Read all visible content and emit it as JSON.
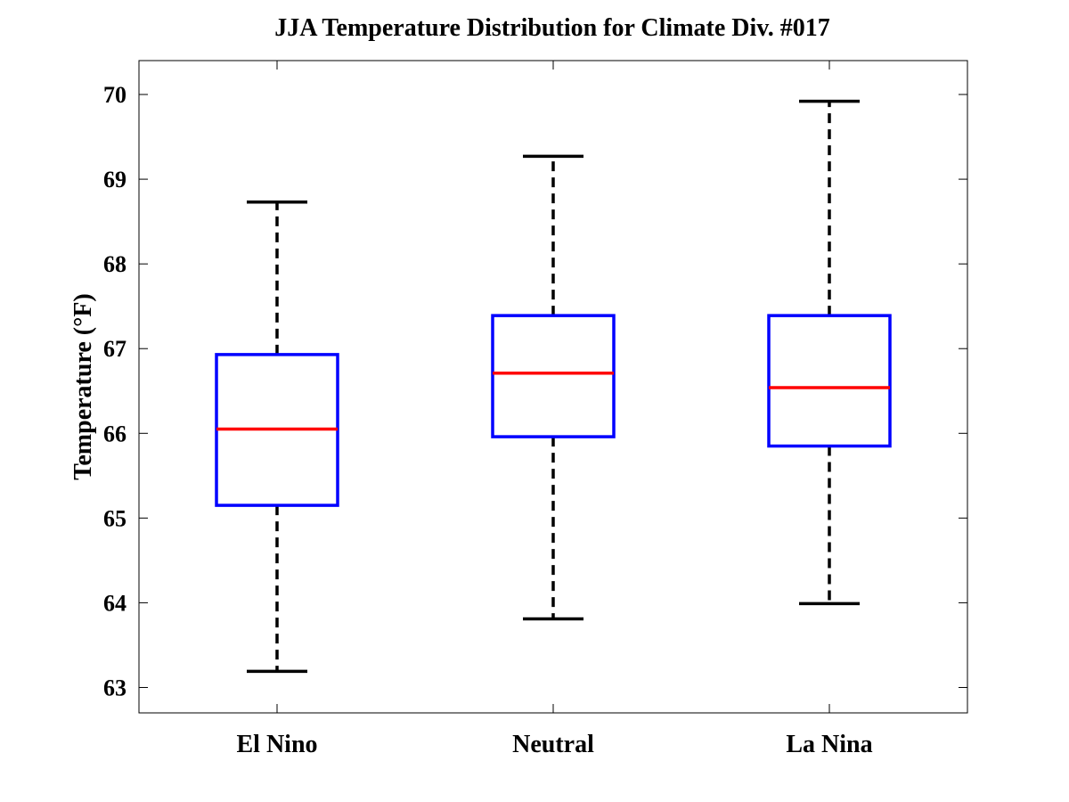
{
  "chart_data": {
    "type": "box",
    "title": "JJA Temperature Distribution for Climate Div. #017",
    "xlabel": "",
    "ylabel": "Temperature (°F)",
    "ylim": [
      62.7,
      70.4
    ],
    "yticks": [
      63,
      64,
      65,
      66,
      67,
      68,
      69,
      70
    ],
    "categories": [
      "El Nino",
      "Neutral",
      "La Nina"
    ],
    "boxes": [
      {
        "name": "El Nino",
        "min": 63.19,
        "q1": 65.15,
        "median": 66.05,
        "q3": 66.93,
        "max": 68.73
      },
      {
        "name": "Neutral",
        "min": 63.81,
        "q1": 65.96,
        "median": 66.71,
        "q3": 67.39,
        "max": 69.27
      },
      {
        "name": "La Nina",
        "min": 63.99,
        "q1": 65.85,
        "median": 66.54,
        "q3": 67.39,
        "max": 69.92
      }
    ],
    "grid": false,
    "colors": {
      "box": "#0000ff",
      "median": "#ff0000",
      "whisker": "#000000"
    }
  }
}
